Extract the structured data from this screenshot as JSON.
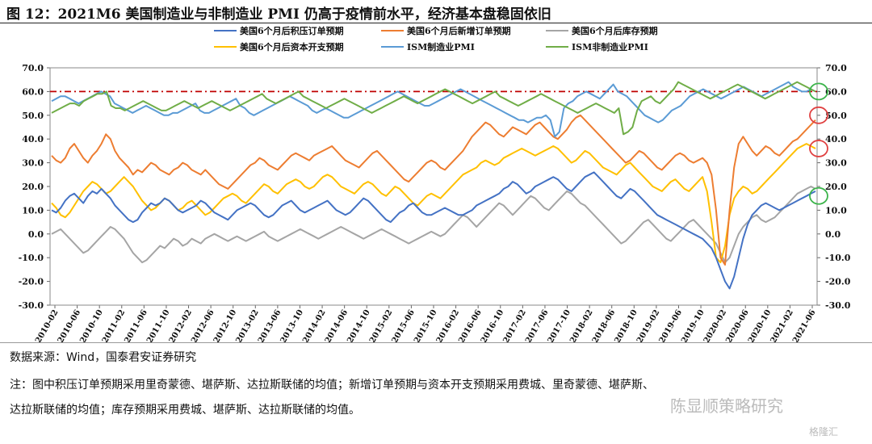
{
  "title": "图 12：2021M6 美国制造业与非制造业 PMI 仍高于疫情前水平，经济基本盘稳固依旧",
  "source": "数据来源：Wind，国泰君安证券研究",
  "note_line1": "注：图中积压订单预期采用里奇蒙德、堪萨斯、达拉斯联储的均值；新增订单预期与资本开支预期采用费城、里奇蒙德、堪萨斯、",
  "note_line2": "达拉斯联储的均值；库存预期采用费城、堪萨斯、达拉斯联储的均值。",
  "watermark": "陈显顺策略研究",
  "watermark_logo": "格隆汇",
  "chart_data": {
    "type": "line",
    "ylim": [
      -30,
      70
    ],
    "yticks": [
      "70.0",
      "60.0",
      "50.0",
      "40.0",
      "30.0",
      "20.0",
      "10.0",
      "0.0",
      "-10.0",
      "-20.0",
      "-30.0"
    ],
    "xticks": [
      "2010-02",
      "2010-06",
      "2010-10",
      "2011-02",
      "2011-06",
      "2011-10",
      "2012-02",
      "2012-06",
      "2012-10",
      "2013-02",
      "2013-06",
      "2013-10",
      "2014-02",
      "2014-06",
      "2014-10",
      "2015-02",
      "2015-06",
      "2015-10",
      "2016-02",
      "2016-06",
      "2016-10",
      "2017-02",
      "2017-06",
      "2017-10",
      "2018-02",
      "2018-06",
      "2018-10",
      "2019-02",
      "2019-06",
      "2019-10",
      "2020-02",
      "2020-06",
      "2020-10",
      "2021-02",
      "2021-06"
    ],
    "reference_line": 60,
    "legend": [
      "美国6个月后积压订单预期",
      "美国6个月后新增订单预期",
      "美国6个月后库存预期",
      "美国6个月后资本开支预期",
      "ISM制造业PMI",
      "ISM非制造业PMI"
    ],
    "colors": {
      "backlog": "#4472c4",
      "new_orders": "#ed7d31",
      "inventory": "#a5a5a5",
      "capex": "#ffc000",
      "ism_mfg": "#5b9bd5",
      "ism_nonmfg": "#70ad47",
      "ref": "#c00000",
      "circle_red": "#e04040",
      "circle_green": "#3cb44b"
    },
    "series": [
      {
        "key": "backlog",
        "name": "美国6个月后积压订单预期",
        "values": [
          10,
          9,
          11,
          14,
          16,
          17,
          15,
          13,
          16,
          18,
          17,
          19,
          17,
          15,
          12,
          10,
          8,
          6,
          5,
          6,
          9,
          11,
          13,
          12,
          13,
          15,
          14,
          12,
          10,
          9,
          10,
          11,
          12,
          14,
          13,
          11,
          9,
          8,
          7,
          6,
          8,
          10,
          11,
          12,
          13,
          12,
          10,
          8,
          7,
          8,
          10,
          12,
          13,
          14,
          12,
          10,
          9,
          10,
          11,
          12,
          13,
          14,
          12,
          10,
          9,
          8,
          9,
          11,
          13,
          15,
          14,
          12,
          10,
          8,
          6,
          5,
          7,
          9,
          10,
          12,
          13,
          11,
          9,
          8,
          8,
          9,
          10,
          11,
          10,
          9,
          8,
          8,
          9,
          10,
          12,
          13,
          14,
          15,
          16,
          17,
          19,
          20,
          22,
          21,
          19,
          17,
          18,
          20,
          21,
          22,
          23,
          24,
          23,
          21,
          19,
          18,
          20,
          22,
          24,
          25,
          26,
          24,
          22,
          20,
          18,
          16,
          15,
          17,
          19,
          18,
          16,
          14,
          12,
          10,
          8,
          7,
          6,
          5,
          4,
          3,
          2,
          1,
          0,
          -1,
          -2,
          -4,
          -6,
          -10,
          -15,
          -20,
          -23,
          -18,
          -10,
          -2,
          4,
          8,
          10,
          12,
          13,
          12,
          11,
          10,
          11,
          12,
          13,
          14,
          15,
          16,
          17,
          18
        ]
      },
      {
        "key": "new_orders",
        "name": "美国6个月后新增订单预期",
        "values": [
          33,
          31,
          30,
          32,
          36,
          38,
          35,
          32,
          30,
          33,
          35,
          38,
          42,
          40,
          35,
          32,
          30,
          28,
          25,
          27,
          26,
          28,
          30,
          29,
          27,
          26,
          25,
          27,
          28,
          30,
          29,
          27,
          26,
          25,
          27,
          25,
          23,
          21,
          20,
          19,
          21,
          23,
          25,
          27,
          29,
          30,
          32,
          31,
          29,
          28,
          27,
          29,
          31,
          33,
          34,
          33,
          32,
          31,
          33,
          34,
          35,
          36,
          37,
          35,
          33,
          31,
          30,
          29,
          28,
          30,
          32,
          34,
          35,
          33,
          31,
          29,
          27,
          25,
          23,
          22,
          24,
          26,
          28,
          30,
          31,
          30,
          28,
          27,
          29,
          31,
          33,
          35,
          38,
          41,
          43,
          45,
          47,
          46,
          44,
          42,
          41,
          43,
          45,
          44,
          43,
          42,
          44,
          46,
          47,
          45,
          43,
          41,
          40,
          42,
          44,
          47,
          49,
          50,
          48,
          46,
          44,
          42,
          40,
          38,
          36,
          34,
          32,
          30,
          31,
          33,
          35,
          34,
          32,
          30,
          28,
          27,
          29,
          31,
          33,
          34,
          33,
          31,
          30,
          31,
          32,
          30,
          25,
          10,
          -10,
          -13,
          10,
          28,
          38,
          41,
          38,
          35,
          33,
          35,
          37,
          36,
          34,
          33,
          35,
          37,
          39,
          40,
          42,
          44,
          46,
          48
        ]
      },
      {
        "key": "inventory",
        "name": "美国6个月后库存预期",
        "values": [
          0,
          1,
          2,
          0,
          -2,
          -4,
          -6,
          -8,
          -7,
          -5,
          -3,
          -1,
          1,
          3,
          2,
          0,
          -2,
          -5,
          -8,
          -10,
          -12,
          -11,
          -9,
          -7,
          -5,
          -6,
          -4,
          -2,
          -3,
          -5,
          -4,
          -2,
          -3,
          -4,
          -2,
          -1,
          0,
          -1,
          -2,
          -3,
          -2,
          -1,
          -2,
          -3,
          -2,
          -1,
          0,
          1,
          -1,
          -2,
          -3,
          -2,
          -1,
          0,
          1,
          2,
          1,
          0,
          -1,
          -2,
          -1,
          0,
          1,
          2,
          3,
          2,
          1,
          0,
          -1,
          -2,
          -1,
          0,
          1,
          2,
          1,
          0,
          -1,
          -2,
          -3,
          -4,
          -3,
          -2,
          -1,
          0,
          1,
          0,
          -1,
          0,
          2,
          4,
          6,
          8,
          7,
          5,
          3,
          5,
          7,
          9,
          11,
          13,
          12,
          10,
          8,
          10,
          12,
          14,
          16,
          15,
          13,
          11,
          10,
          12,
          14,
          16,
          18,
          17,
          15,
          13,
          12,
          10,
          8,
          6,
          4,
          2,
          0,
          -2,
          -4,
          -3,
          -1,
          1,
          3,
          5,
          6,
          4,
          2,
          0,
          -2,
          -3,
          -1,
          1,
          3,
          5,
          6,
          4,
          2,
          0,
          -2,
          -4,
          -8,
          -12,
          -10,
          -5,
          0,
          3,
          5,
          7,
          8,
          6,
          5,
          6,
          7,
          9,
          11,
          13,
          15,
          17,
          18,
          19,
          20,
          19
        ]
      },
      {
        "key": "capex",
        "name": "美国6个月后资本开支预期",
        "values": [
          13,
          11,
          8,
          7,
          9,
          12,
          15,
          18,
          20,
          22,
          21,
          19,
          17,
          18,
          20,
          22,
          24,
          22,
          20,
          17,
          14,
          12,
          10,
          11,
          13,
          15,
          14,
          12,
          10,
          11,
          13,
          14,
          12,
          10,
          8,
          9,
          11,
          13,
          15,
          16,
          17,
          16,
          14,
          13,
          15,
          17,
          19,
          21,
          20,
          18,
          17,
          19,
          21,
          22,
          23,
          22,
          20,
          19,
          20,
          22,
          24,
          25,
          24,
          22,
          20,
          19,
          18,
          17,
          19,
          21,
          22,
          21,
          19,
          17,
          16,
          18,
          20,
          19,
          17,
          15,
          13,
          12,
          14,
          16,
          17,
          16,
          15,
          17,
          19,
          21,
          23,
          25,
          26,
          27,
          28,
          30,
          31,
          30,
          29,
          30,
          32,
          33,
          34,
          35,
          36,
          35,
          34,
          33,
          34,
          35,
          36,
          37,
          36,
          34,
          32,
          30,
          31,
          33,
          35,
          34,
          32,
          30,
          28,
          27,
          26,
          25,
          27,
          29,
          30,
          28,
          26,
          24,
          22,
          20,
          19,
          18,
          20,
          22,
          23,
          21,
          19,
          18,
          20,
          22,
          24,
          18,
          5,
          -10,
          -12,
          -5,
          8,
          15,
          18,
          20,
          19,
          17,
          18,
          20,
          22,
          24,
          26,
          28,
          30,
          32,
          34,
          36,
          37,
          38,
          37,
          36
        ]
      },
      {
        "key": "ism_mfg",
        "name": "ISM制造业PMI",
        "values": [
          56,
          57,
          58,
          58,
          57,
          56,
          55,
          56,
          57,
          58,
          59,
          60,
          59,
          58,
          55,
          54,
          53,
          52,
          51,
          52,
          53,
          54,
          53,
          52,
          51,
          50,
          50,
          51,
          51,
          52,
          53,
          54,
          55,
          52,
          51,
          51,
          52,
          53,
          54,
          55,
          56,
          57,
          54,
          53,
          51,
          50,
          51,
          52,
          53,
          54,
          55,
          56,
          57,
          58,
          57,
          56,
          55,
          54,
          52,
          51,
          52,
          53,
          52,
          51,
          50,
          49,
          49,
          50,
          51,
          52,
          53,
          54,
          55,
          56,
          57,
          58,
          59,
          60,
          59,
          58,
          57,
          56,
          55,
          54,
          54,
          55,
          56,
          57,
          58,
          59,
          60,
          61,
          60,
          59,
          58,
          57,
          56,
          55,
          54,
          53,
          52,
          51,
          50,
          49,
          48,
          48,
          47,
          48,
          49,
          49,
          50,
          48,
          41,
          43,
          53,
          55,
          56,
          58,
          59,
          60,
          59,
          58,
          57,
          59,
          61,
          63,
          60,
          59,
          58,
          56,
          54,
          52,
          50,
          49,
          48,
          47,
          48,
          50,
          52,
          53,
          54,
          56,
          58,
          59,
          60,
          61,
          60,
          59,
          58,
          57,
          58,
          59,
          60,
          61,
          62,
          61,
          60,
          59,
          58,
          59,
          60,
          61,
          62,
          63,
          64,
          62,
          61,
          60,
          60,
          61,
          60
        ]
      },
      {
        "key": "ism_nonmfg",
        "name": "ISM非制造业PMI",
        "values": [
          51,
          52,
          53,
          54,
          55,
          55,
          54,
          56,
          57,
          58,
          59,
          59,
          60,
          54,
          53,
          53,
          52,
          53,
          54,
          55,
          56,
          55,
          54,
          53,
          52,
          52,
          53,
          54,
          55,
          56,
          55,
          54,
          53,
          54,
          55,
          56,
          55,
          54,
          53,
          52,
          53,
          54,
          55,
          56,
          57,
          58,
          59,
          57,
          56,
          55,
          56,
          57,
          58,
          59,
          60,
          58,
          57,
          56,
          55,
          54,
          53,
          54,
          55,
          56,
          57,
          56,
          55,
          54,
          53,
          52,
          51,
          52,
          53,
          54,
          55,
          56,
          57,
          58,
          57,
          56,
          55,
          56,
          57,
          58,
          59,
          60,
          61,
          60,
          59,
          58,
          57,
          56,
          55,
          56,
          57,
          58,
          59,
          60,
          58,
          57,
          56,
          55,
          54,
          55,
          56,
          57,
          58,
          59,
          58,
          57,
          56,
          55,
          54,
          53,
          52,
          51,
          52,
          53,
          54,
          55,
          54,
          53,
          52,
          51,
          53,
          42,
          43,
          45,
          52,
          56,
          57,
          58,
          56,
          55,
          57,
          59,
          61,
          64,
          63,
          62,
          61,
          60,
          59,
          58,
          57,
          58,
          59,
          60,
          61,
          62,
          63,
          62,
          61,
          60,
          59,
          58,
          57,
          58,
          59,
          60,
          61,
          62,
          63,
          64,
          63,
          62,
          61,
          60
        ]
      }
    ]
  }
}
